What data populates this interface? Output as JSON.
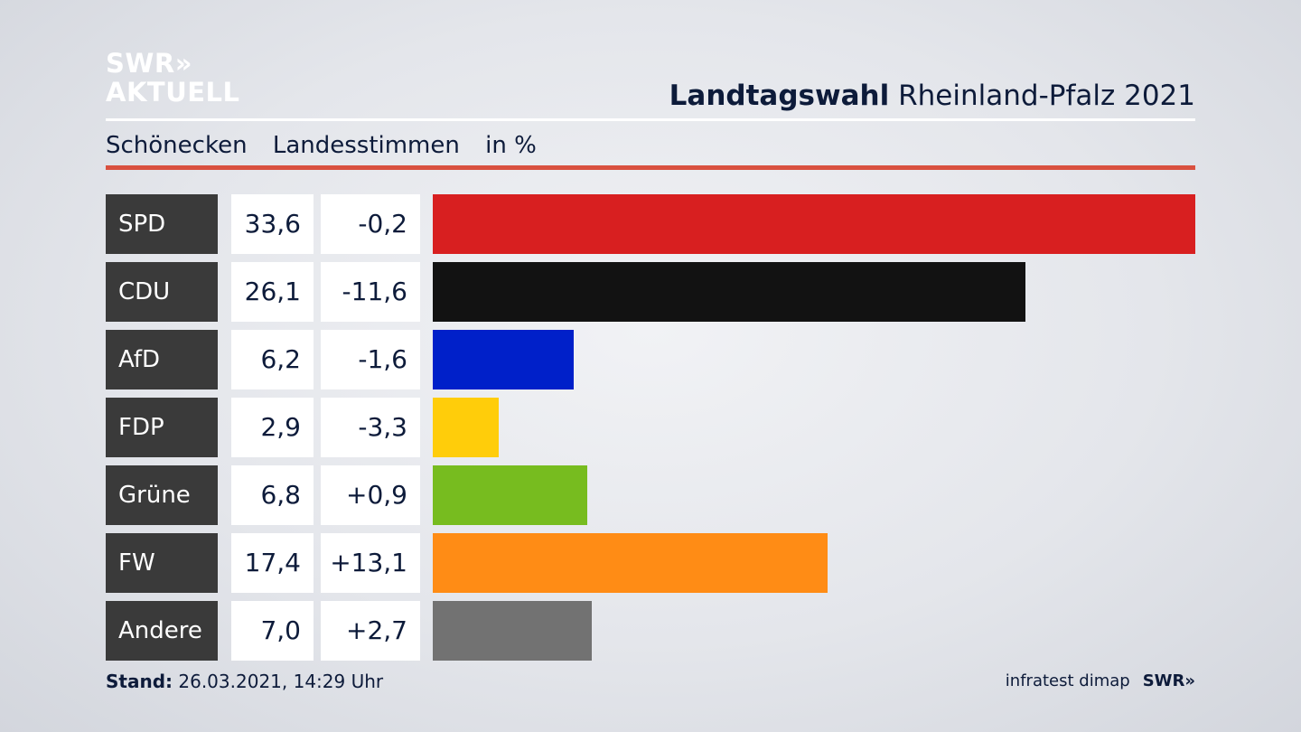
{
  "logo": {
    "line1": "SWR»",
    "line2": "AKTUELL"
  },
  "header": {
    "title_bold": "Landtagswahl",
    "title_rest": "Rheinland-Pfalz 2021"
  },
  "subheader": {
    "location": "Schönecken",
    "vote_type": "Landesstimmen",
    "unit": "in %"
  },
  "footer": {
    "stand_label": "Stand:",
    "stand_value": "26.03.2021, 14:29 Uhr",
    "source": "infratest dimap",
    "broadcaster": "SWR»"
  },
  "chart_data": {
    "type": "bar",
    "orientation": "horizontal",
    "unit": "in %",
    "categories": [
      "SPD",
      "CDU",
      "AfD",
      "FDP",
      "Grüne",
      "FW",
      "Andere"
    ],
    "values": [
      33.6,
      26.1,
      6.2,
      2.9,
      6.8,
      17.4,
      7.0
    ],
    "value_labels": [
      "33,6",
      "26,1",
      "6,2",
      "2,9",
      "6,8",
      "17,4",
      "7,0"
    ],
    "diffs": [
      -0.2,
      -11.6,
      -1.6,
      -3.3,
      0.9,
      13.1,
      2.7
    ],
    "diff_labels": [
      "-0,2",
      "-11,6",
      "-1,6",
      "-3,3",
      "+0,9",
      "+13,1",
      "+2,7"
    ],
    "colors": [
      "#d81f20",
      "#121212",
      "#0020c9",
      "#ffcd0a",
      "#77bc1f",
      "#ff8c15",
      "#727272"
    ],
    "xlim": [
      0,
      33.6
    ]
  }
}
